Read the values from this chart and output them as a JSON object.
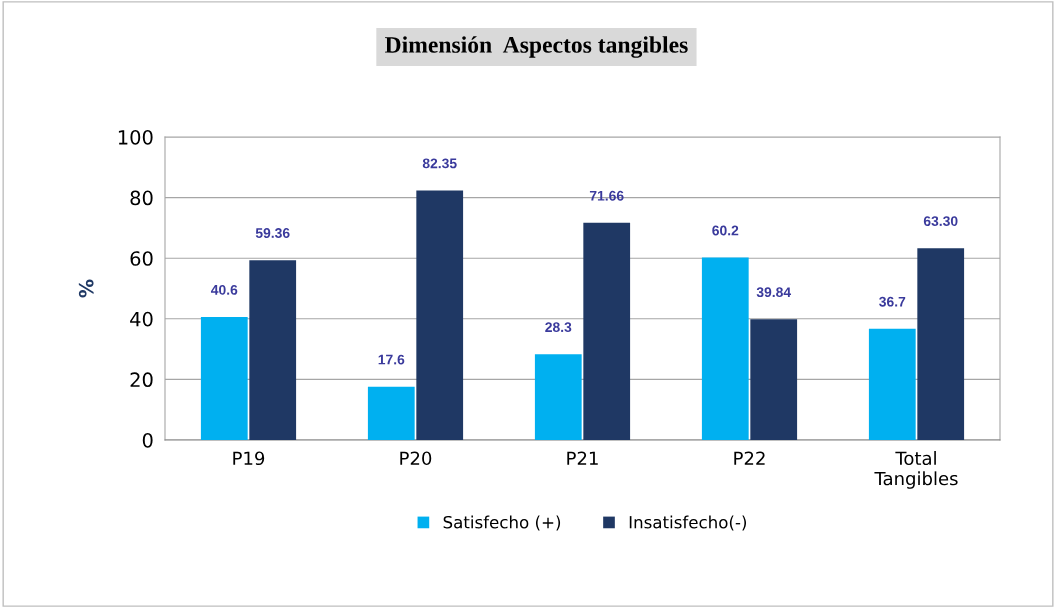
{
  "chart_data": {
    "type": "bar",
    "title": "Dimensión  Aspectos tangibles",
    "ylabel": "%",
    "categories": [
      "P19",
      "P20",
      "P21",
      "P22",
      "Total\nTangibles"
    ],
    "series": [
      {
        "name": "Satisfecho (+)",
        "color": "#00b0f0",
        "values": [
          40.6,
          17.6,
          28.3,
          60.2,
          36.7
        ],
        "value_labels": [
          "40.6",
          "17.6",
          "28.3",
          "60.2",
          "36.7"
        ]
      },
      {
        "name": "Insatisfecho(-)",
        "color": "#1f3864",
        "values": [
          59.36,
          82.35,
          71.66,
          39.84,
          63.3
        ],
        "value_labels": [
          "59.36",
          "82.35",
          "71.66",
          "39.84",
          "63.30"
        ]
      }
    ],
    "ylim": [
      0,
      100
    ],
    "yticks": [
      0,
      20,
      40,
      60,
      80,
      100
    ],
    "grid": "y",
    "legend": "bottom"
  }
}
